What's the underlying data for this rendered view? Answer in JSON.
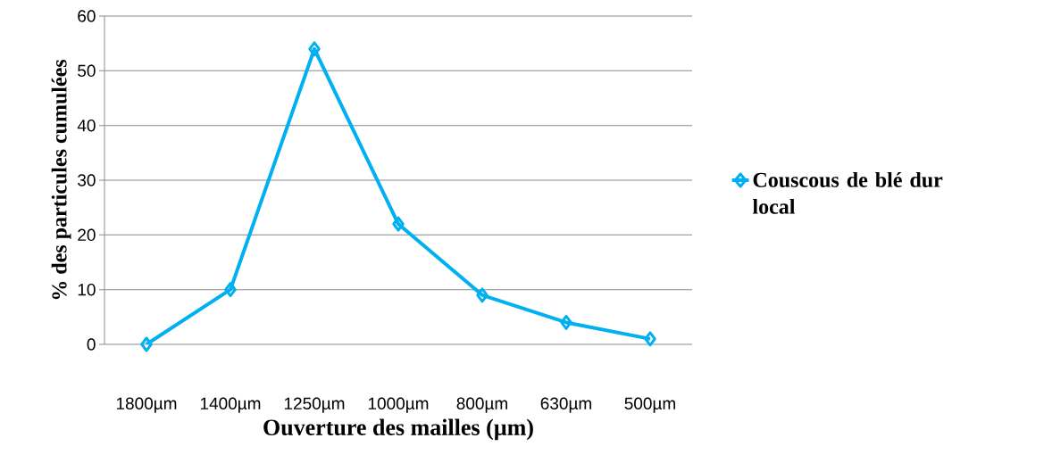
{
  "chart_data": {
    "type": "line",
    "xlabel": "Ouverture des mailles (µm)",
    "ylabel": "% des particules cumulées",
    "categories": [
      "1800µm",
      "1400µm",
      "1250µm",
      "1000µm",
      "800µm",
      "630µm",
      "500µm"
    ],
    "series": [
      {
        "name": "Couscous de blé dur local",
        "color": "#00b0f0",
        "values": [
          0,
          10,
          54,
          22,
          9,
          4,
          1
        ]
      }
    ],
    "ylim": [
      0,
      60
    ],
    "yticks": [
      0,
      10,
      20,
      30,
      40,
      50,
      60
    ],
    "grid": "y",
    "legend": "right",
    "marker": "diamond",
    "line_style": "solid"
  }
}
